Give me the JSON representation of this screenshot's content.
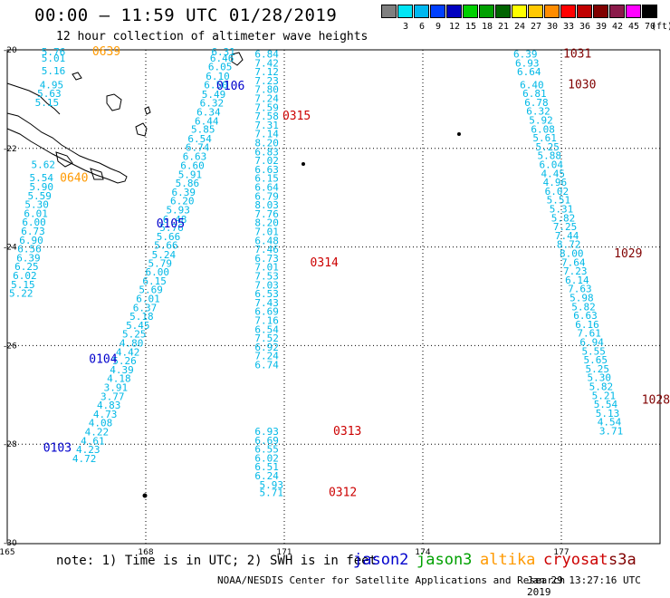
{
  "header": {
    "title": "00:00 – 11:59 UTC 01/28/2019",
    "subtitle": "12 hour collection of altimeter wave heights"
  },
  "legend": {
    "unit": "(ft)",
    "items": [
      {
        "label": "",
        "color": "#7f7f7f"
      },
      {
        "label": "3",
        "color": "#00e5f5"
      },
      {
        "label": "6",
        "color": "#00b8f0"
      },
      {
        "label": "9",
        "color": "#0040ff"
      },
      {
        "label": "12",
        "color": "#0000c0"
      },
      {
        "label": "15",
        "color": "#00d000"
      },
      {
        "label": "18",
        "color": "#00a000"
      },
      {
        "label": "21",
        "color": "#006400"
      },
      {
        "label": "24",
        "color": "#ffff00"
      },
      {
        "label": "27",
        "color": "#ffc800"
      },
      {
        "label": "30",
        "color": "#ff8c00"
      },
      {
        "label": "33",
        "color": "#ff0000"
      },
      {
        "label": "36",
        "color": "#c00000"
      },
      {
        "label": "39",
        "color": "#800000"
      },
      {
        "label": "42",
        "color": "#8b1a4a"
      },
      {
        "label": "45",
        "color": "#ff00ff"
      },
      {
        "label": "70",
        "color": "#000000"
      }
    ]
  },
  "axes": {
    "lon_ticks": [
      "165",
      "168",
      "171",
      "174",
      "177"
    ],
    "lat_ticks": [
      "-20",
      "-22",
      "-24",
      "-26",
      "-28",
      "-30"
    ]
  },
  "colors": {
    "wave_value": "#00b8e6",
    "jason2": "#0000cc",
    "jason3": "#00a000",
    "altika": "#ff9900",
    "cryosat": "#cc0000",
    "s3a": "#800000"
  },
  "tracks": [
    {
      "satellite": "jason2",
      "time_labels": [
        {
          "text": "0106",
          "lon": 169.53,
          "lat": -20.78
        },
        {
          "text": "0105",
          "lon": 168.23,
          "lat": -23.88
        },
        {
          "text": "0104",
          "lon": 166.77,
          "lat": -26.93
        },
        {
          "text": "0103",
          "lon": 165.78,
          "lat": -28.93
        }
      ],
      "values": [
        {
          "text": "6.31",
          "lon": 169.42,
          "lat": -20.0
        },
        {
          "text": "6.46",
          "lon": 169.39,
          "lat": -20.14
        },
        {
          "text": "6.05",
          "lon": 169.35,
          "lat": -20.34
        },
        {
          "text": "6.10",
          "lon": 169.3,
          "lat": -20.55
        },
        {
          "text": "6.50",
          "lon": 169.26,
          "lat": -20.74
        },
        {
          "text": "5.49",
          "lon": 169.21,
          "lat": -20.96
        },
        {
          "text": "6.32",
          "lon": 169.17,
          "lat": -21.15
        },
        {
          "text": "6.34",
          "lon": 169.1,
          "lat": -21.36
        },
        {
          "text": "6.44",
          "lon": 169.06,
          "lat": -21.56
        },
        {
          "text": "5.85",
          "lon": 168.98,
          "lat": -21.74
        },
        {
          "text": "6.54",
          "lon": 168.91,
          "lat": -21.96
        },
        {
          "text": "6.74",
          "lon": 168.86,
          "lat": -22.15
        },
        {
          "text": "6.63",
          "lon": 168.8,
          "lat": -22.36
        },
        {
          "text": "6.60",
          "lon": 168.75,
          "lat": -22.56
        },
        {
          "text": "5.91",
          "lon": 168.7,
          "lat": -22.76
        },
        {
          "text": "5.86",
          "lon": 168.64,
          "lat": -22.96
        },
        {
          "text": "6.39",
          "lon": 168.56,
          "lat": -23.16
        },
        {
          "text": "6.20",
          "lon": 168.53,
          "lat": -23.36
        },
        {
          "text": "5.93",
          "lon": 168.44,
          "lat": -23.56
        },
        {
          "text": "6.48",
          "lon": 168.37,
          "lat": -23.77
        },
        {
          "text": "5.76",
          "lon": 168.3,
          "lat": -23.96
        },
        {
          "text": "5.66",
          "lon": 168.23,
          "lat": -24.16
        },
        {
          "text": "5.66",
          "lon": 168.18,
          "lat": -24.36
        },
        {
          "text": "5.24",
          "lon": 168.13,
          "lat": -24.57
        },
        {
          "text": "5.79",
          "lon": 168.05,
          "lat": -24.76
        },
        {
          "text": "6.00",
          "lon": 167.99,
          "lat": -24.96
        },
        {
          "text": "6.15",
          "lon": 167.93,
          "lat": -25.16
        },
        {
          "text": "5.69",
          "lon": 167.85,
          "lat": -25.36
        },
        {
          "text": "6.01",
          "lon": 167.79,
          "lat": -25.56
        },
        {
          "text": "6.37",
          "lon": 167.72,
          "lat": -25.76
        },
        {
          "text": "5.18",
          "lon": 167.65,
          "lat": -25.96
        },
        {
          "text": "5.45",
          "lon": 167.57,
          "lat": -26.16
        },
        {
          "text": "5.25",
          "lon": 167.49,
          "lat": -26.36
        },
        {
          "text": "4.80",
          "lon": 167.43,
          "lat": -26.56
        },
        {
          "text": "4.42",
          "lon": 167.35,
          "lat": -26.76
        },
        {
          "text": "5.26",
          "lon": 167.28,
          "lat": -26.96
        },
        {
          "text": "4.39",
          "lon": 167.22,
          "lat": -27.16
        },
        {
          "text": "4.18",
          "lon": 167.16,
          "lat": -27.36
        },
        {
          "text": "3.91",
          "lon": 167.09,
          "lat": -27.56
        },
        {
          "text": "3.77",
          "lon": 167.02,
          "lat": -27.76
        },
        {
          "text": "4.83",
          "lon": 166.94,
          "lat": -27.96
        },
        {
          "text": "4.73",
          "lon": 166.86,
          "lat": -28.16
        },
        {
          "text": "4.08",
          "lon": 166.76,
          "lat": -28.36
        },
        {
          "text": "4.22",
          "lon": 166.68,
          "lat": -28.56
        },
        {
          "text": "4.61",
          "lon": 166.59,
          "lat": -28.76
        },
        {
          "text": "4.23",
          "lon": 166.49,
          "lat": -28.96
        },
        {
          "text": "4.72",
          "lon": 166.41,
          "lat": -29.16
        }
      ]
    },
    {
      "satellite": "jason2",
      "time_labels": [],
      "values": [
        {
          "text": "6.84",
          "lon": 170.36,
          "lat": -20.05
        },
        {
          "text": "7.42",
          "lon": 170.36,
          "lat": -20.25
        },
        {
          "text": "7.12",
          "lon": 170.36,
          "lat": -20.45
        },
        {
          "text": "7.23",
          "lon": 170.36,
          "lat": -20.65
        },
        {
          "text": "7.80",
          "lon": 170.36,
          "lat": -20.85
        },
        {
          "text": "7.24",
          "lon": 170.36,
          "lat": -21.05
        },
        {
          "text": "7.59",
          "lon": 170.36,
          "lat": -21.25
        },
        {
          "text": "7.58",
          "lon": 170.36,
          "lat": -21.45
        },
        {
          "text": "7.31",
          "lon": 170.36,
          "lat": -21.65
        },
        {
          "text": "7.14",
          "lon": 170.36,
          "lat": -21.85
        },
        {
          "text": "8.20",
          "lon": 170.36,
          "lat": -22.05
        },
        {
          "text": "6.83",
          "lon": 170.36,
          "lat": -22.25
        },
        {
          "text": "7.02",
          "lon": 170.36,
          "lat": -22.45
        },
        {
          "text": "6.63",
          "lon": 170.36,
          "lat": -22.65
        },
        {
          "text": "6.15",
          "lon": 170.36,
          "lat": -22.85
        },
        {
          "text": "6.64",
          "lon": 170.36,
          "lat": -23.05
        },
        {
          "text": "6.79",
          "lon": 170.36,
          "lat": -23.25
        },
        {
          "text": "8.03",
          "lon": 170.36,
          "lat": -23.45
        },
        {
          "text": "7.76",
          "lon": 170.36,
          "lat": -23.65
        },
        {
          "text": "8.20",
          "lon": 170.36,
          "lat": -23.85
        },
        {
          "text": "7.01",
          "lon": 170.36,
          "lat": -24.05
        },
        {
          "text": "6.48",
          "lon": 170.36,
          "lat": -24.25
        },
        {
          "text": "7.46",
          "lon": 170.36,
          "lat": -24.45
        },
        {
          "text": "6.73",
          "lon": 170.36,
          "lat": -24.65
        },
        {
          "text": "7.01",
          "lon": 170.36,
          "lat": -24.85
        },
        {
          "text": "7.53",
          "lon": 170.36,
          "lat": -25.05
        },
        {
          "text": "7.03",
          "lon": 170.36,
          "lat": -25.25
        },
        {
          "text": "6.53",
          "lon": 170.36,
          "lat": -25.45
        },
        {
          "text": "7.43",
          "lon": 170.36,
          "lat": -25.65
        },
        {
          "text": "6.69",
          "lon": 170.36,
          "lat": -25.85
        },
        {
          "text": "7.16",
          "lon": 170.36,
          "lat": -26.05
        },
        {
          "text": "6.54",
          "lon": 170.36,
          "lat": -26.25
        },
        {
          "text": "7.52",
          "lon": 170.36,
          "lat": -26.45
        },
        {
          "text": "6.92",
          "lon": 170.36,
          "lat": -26.65
        },
        {
          "text": "7.24",
          "lon": 170.36,
          "lat": -26.85
        },
        {
          "text": "6.74",
          "lon": 170.36,
          "lat": -27.05
        }
      ]
    },
    {
      "satellite": "cryosat",
      "time_labels": [
        {
          "text": "0315",
          "lon": 170.96,
          "lat": -21.45
        },
        {
          "text": "0314",
          "lon": 171.56,
          "lat": -24.75
        },
        {
          "text": "0313",
          "lon": 172.06,
          "lat": -28.55
        },
        {
          "text": "0312",
          "lon": 171.96,
          "lat": -29.93
        }
      ],
      "values": [
        {
          "text": "6.93",
          "lon": 170.36,
          "lat": -28.55
        },
        {
          "text": "6.69",
          "lon": 170.36,
          "lat": -28.75
        },
        {
          "text": "6.55",
          "lon": 170.36,
          "lat": -28.95
        },
        {
          "text": "6.02",
          "lon": 170.36,
          "lat": -29.15
        },
        {
          "text": "6.51",
          "lon": 170.36,
          "lat": -29.35
        },
        {
          "text": "6.24",
          "lon": 170.36,
          "lat": -29.55
        },
        {
          "text": "5.93",
          "lon": 170.46,
          "lat": -29.75
        },
        {
          "text": "5.71",
          "lon": 170.46,
          "lat": -29.93
        }
      ]
    },
    {
      "satellite": "altika",
      "time_labels": [
        {
          "text": "0639",
          "lon": 166.84,
          "lat": -20.0
        },
        {
          "text": "0640",
          "lon": 166.14,
          "lat": -22.85
        }
      ],
      "values": [
        {
          "text": "5.76",
          "lon": 165.74,
          "lat": -20.0
        },
        {
          "text": "5.01",
          "lon": 165.74,
          "lat": -20.14
        },
        {
          "text": "5.16",
          "lon": 165.74,
          "lat": -20.43
        },
        {
          "text": "4.95",
          "lon": 165.7,
          "lat": -20.74
        },
        {
          "text": "5.63",
          "lon": 165.65,
          "lat": -20.94
        },
        {
          "text": "5.15",
          "lon": 165.6,
          "lat": -21.14
        },
        {
          "text": "5.62",
          "lon": 165.52,
          "lat": -22.54
        },
        {
          "text": "5.54",
          "lon": 165.48,
          "lat": -22.84
        },
        {
          "text": "5.90",
          "lon": 165.48,
          "lat": -23.04
        },
        {
          "text": "5.59",
          "lon": 165.44,
          "lat": -23.24
        },
        {
          "text": "5.30",
          "lon": 165.38,
          "lat": -23.44
        },
        {
          "text": "6.01",
          "lon": 165.36,
          "lat": -23.64
        },
        {
          "text": "6.00",
          "lon": 165.32,
          "lat": -23.84
        },
        {
          "text": "6.73",
          "lon": 165.3,
          "lat": -24.04
        },
        {
          "text": "6.90",
          "lon": 165.26,
          "lat": -24.24
        },
        {
          "text": "6.56",
          "lon": 165.22,
          "lat": -24.44
        },
        {
          "text": "6.39",
          "lon": 165.2,
          "lat": -24.64
        },
        {
          "text": "6.25",
          "lon": 165.16,
          "lat": -24.84
        },
        {
          "text": "6.02",
          "lon": 165.12,
          "lat": -25.04
        },
        {
          "text": "5.15",
          "lon": 165.08,
          "lat": -25.24
        },
        {
          "text": "5.22",
          "lon": 165.04,
          "lat": -25.44
        }
      ]
    },
    {
      "satellite": "s3a",
      "time_labels": [
        {
          "text": "1031",
          "lon": 177.04,
          "lat": -20.05
        },
        {
          "text": "1030",
          "lon": 177.14,
          "lat": -20.74
        },
        {
          "text": "1029",
          "lon": 178.14,
          "lat": -24.55
        },
        {
          "text": "1028",
          "lon": 178.74,
          "lat": -27.85
        }
      ],
      "values": [
        {
          "text": "6.39",
          "lon": 175.96,
          "lat": -20.05
        },
        {
          "text": "6.93",
          "lon": 176.0,
          "lat": -20.25
        },
        {
          "text": "6.64",
          "lon": 176.04,
          "lat": -20.45
        },
        {
          "text": "6.40",
          "lon": 176.1,
          "lat": -20.74
        },
        {
          "text": "6.81",
          "lon": 176.16,
          "lat": -20.94
        },
        {
          "text": "6.78",
          "lon": 176.2,
          "lat": -21.14
        },
        {
          "text": "6.32",
          "lon": 176.24,
          "lat": -21.34
        },
        {
          "text": "5.92",
          "lon": 176.3,
          "lat": -21.54
        },
        {
          "text": "6.08",
          "lon": 176.34,
          "lat": -21.74
        },
        {
          "text": "5.61",
          "lon": 176.38,
          "lat": -21.94
        },
        {
          "text": "5.25",
          "lon": 176.44,
          "lat": -22.14
        },
        {
          "text": "5.88",
          "lon": 176.48,
          "lat": -22.34
        },
        {
          "text": "6.04",
          "lon": 176.52,
          "lat": -22.54
        },
        {
          "text": "4.45",
          "lon": 176.56,
          "lat": -22.74
        },
        {
          "text": "4.96",
          "lon": 176.6,
          "lat": -22.94
        },
        {
          "text": "6.02",
          "lon": 176.64,
          "lat": -23.14
        },
        {
          "text": "5.51",
          "lon": 176.68,
          "lat": -23.34
        },
        {
          "text": "5.31",
          "lon": 176.74,
          "lat": -23.54
        },
        {
          "text": "5.82",
          "lon": 176.78,
          "lat": -23.74
        },
        {
          "text": "7.25",
          "lon": 176.82,
          "lat": -23.94
        },
        {
          "text": "7.44",
          "lon": 176.86,
          "lat": -24.14
        },
        {
          "text": "8.72",
          "lon": 176.9,
          "lat": -24.34
        },
        {
          "text": "8.00",
          "lon": 176.96,
          "lat": -24.54
        },
        {
          "text": "7.64",
          "lon": 177.0,
          "lat": -24.74
        },
        {
          "text": "7.23",
          "lon": 177.04,
          "lat": -24.94
        },
        {
          "text": "6.14",
          "lon": 177.08,
          "lat": -25.14
        },
        {
          "text": "7.63",
          "lon": 177.14,
          "lat": -25.34
        },
        {
          "text": "5.98",
          "lon": 177.18,
          "lat": -25.54
        },
        {
          "text": "5.82",
          "lon": 177.22,
          "lat": -25.74
        },
        {
          "text": "6.63",
          "lon": 177.26,
          "lat": -25.94
        },
        {
          "text": "6.16",
          "lon": 177.3,
          "lat": -26.14
        },
        {
          "text": "7.61",
          "lon": 177.34,
          "lat": -26.34
        },
        {
          "text": "6.94",
          "lon": 177.4,
          "lat": -26.54
        },
        {
          "text": "5.55",
          "lon": 177.44,
          "lat": -26.74
        },
        {
          "text": "5.65",
          "lon": 177.48,
          "lat": -26.94
        },
        {
          "text": "5.25",
          "lon": 177.52,
          "lat": -27.14
        },
        {
          "text": "5.30",
          "lon": 177.56,
          "lat": -27.34
        },
        {
          "text": "5.82",
          "lon": 177.6,
          "lat": -27.54
        },
        {
          "text": "5.21",
          "lon": 177.66,
          "lat": -27.74
        },
        {
          "text": "5.54",
          "lon": 177.7,
          "lat": -27.94
        },
        {
          "text": "5.13",
          "lon": 177.74,
          "lat": -28.14
        },
        {
          "text": "4.54",
          "lon": 177.78,
          "lat": -28.34
        },
        {
          "text": "3.71",
          "lon": 177.82,
          "lat": -28.54
        }
      ]
    }
  ],
  "footer": {
    "note": "note: 1) Time is in UTC; 2) SWH is in feet",
    "satellites": [
      {
        "name": "jason2",
        "color": "#0000cc"
      },
      {
        "name": "jason3",
        "color": "#00a000"
      },
      {
        "name": "altika",
        "color": "#ff9900"
      },
      {
        "name": "cryosat",
        "color": "#cc0000"
      },
      {
        "name": "s3a",
        "color": "#800000"
      }
    ],
    "credit": "NOAA/NESDIS Center for Satellite Applications and Research",
    "timestamp": "Jan 29 13:27:16 UTC 2019"
  }
}
